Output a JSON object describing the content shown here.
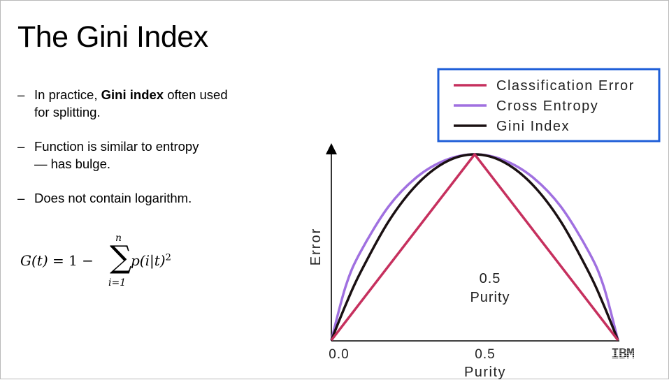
{
  "slide": {
    "title": "The Gini Index",
    "bullets": [
      {
        "dash": "–",
        "lines": [
          {
            "pre": "In practice, ",
            "bold": "Gini index",
            "post": " often used"
          },
          {
            "pre": "for splitting.",
            "bold": "",
            "post": ""
          }
        ]
      },
      {
        "dash": "–",
        "lines": [
          {
            "pre": "Function is similar to entropy",
            "bold": "",
            "post": ""
          },
          {
            "pre": "— has bulge.",
            "bold": "",
            "post": ""
          }
        ]
      },
      {
        "dash": "–",
        "lines": [
          {
            "pre": "Does not contain logarithm.",
            "bold": "",
            "post": ""
          }
        ]
      }
    ],
    "formula": {
      "lhs_func": "G(t)",
      "lhs_eq": " = 1 −",
      "sum_symbol": "∑",
      "upper_limit": "n",
      "lower_limit": "i=1",
      "summand": "p(i|t)",
      "exponent": "2"
    },
    "logo_text": "IBM"
  },
  "chart_data": {
    "type": "line",
    "xlabel": "Purity",
    "ylabel": "Error",
    "xlim": [
      0,
      1
    ],
    "ylim": [
      0,
      1
    ],
    "x_tick_labels": [
      "0.0",
      "0.5"
    ],
    "annotation": [
      "0.5",
      "Purity"
    ],
    "legend_position": "top-right",
    "legend_border_color": "#1f5fd8",
    "series": [
      {
        "name": "Classification Error",
        "color": "#c6305e",
        "x": [
          0,
          0.5,
          1
        ],
        "y": [
          0,
          1,
          0
        ]
      },
      {
        "name": "Cross Entropy",
        "color": "#a070e0",
        "x": [
          0,
          0.05,
          0.1,
          0.2,
          0.3,
          0.4,
          0.5,
          0.6,
          0.7,
          0.8,
          0.9,
          0.95,
          1
        ],
        "y": [
          0,
          0.29,
          0.47,
          0.72,
          0.88,
          0.97,
          1,
          0.97,
          0.88,
          0.72,
          0.47,
          0.29,
          0
        ]
      },
      {
        "name": "Gini Index",
        "color": "#1a1012",
        "x": [
          0,
          0.05,
          0.1,
          0.2,
          0.3,
          0.4,
          0.5,
          0.6,
          0.7,
          0.8,
          0.9,
          0.95,
          1
        ],
        "y": [
          0,
          0.19,
          0.36,
          0.64,
          0.84,
          0.96,
          1,
          0.96,
          0.84,
          0.64,
          0.36,
          0.19,
          0
        ]
      }
    ]
  }
}
